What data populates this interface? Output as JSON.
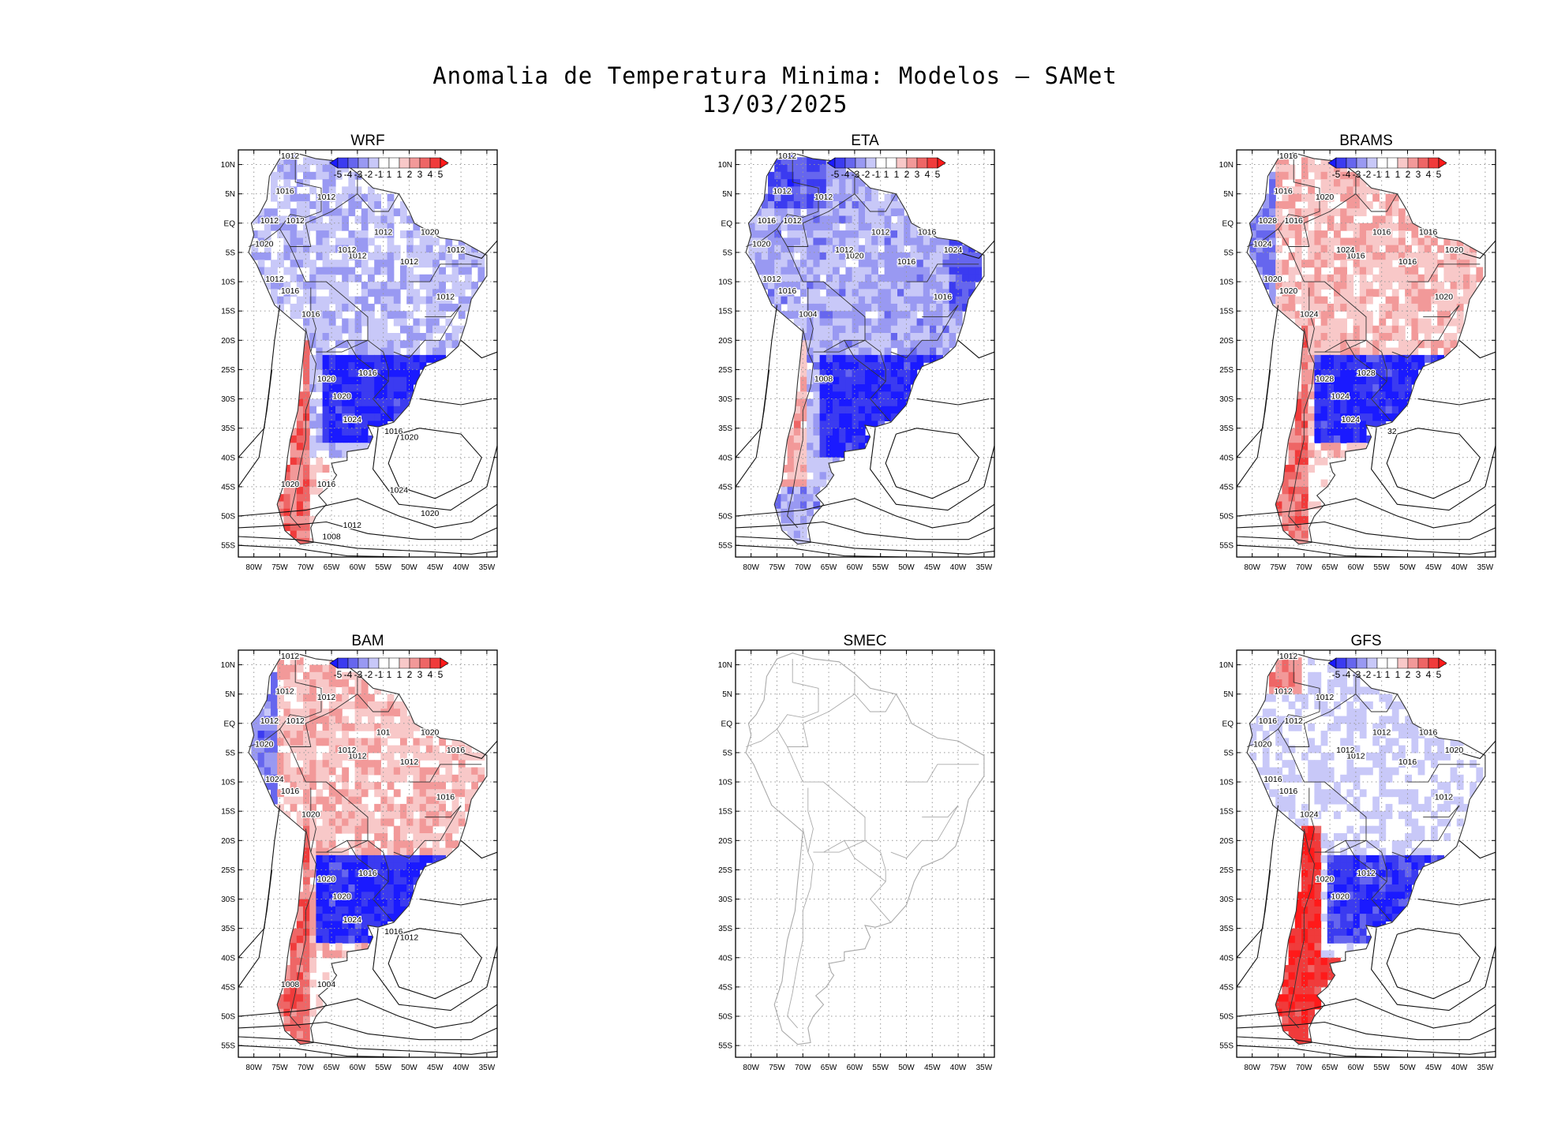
{
  "title": {
    "line1": "Anomalia de Temperatura Minima: Modelos — SAMet",
    "line2": "13/03/2025"
  },
  "lat_labels": [
    "10N",
    "5N",
    "EQ",
    "5S",
    "10S",
    "15S",
    "20S",
    "25S",
    "30S",
    "35S",
    "40S",
    "45S",
    "50S",
    "55S"
  ],
  "lon_labels": [
    "80W",
    "75W",
    "70W",
    "65W",
    "60W",
    "55W",
    "50W",
    "45W",
    "40W",
    "35W"
  ],
  "colorbar": {
    "labels": [
      "-5",
      "-4",
      "-3",
      "-2",
      "-1",
      "1",
      "1",
      "2",
      "3",
      "4",
      "5"
    ],
    "colors": [
      "#1a1aff",
      "#3b3bf0",
      "#6666ee",
      "#9999f2",
      "#c8c8f8",
      "#ffffff",
      "#ffffff",
      "#f8c8c8",
      "#f29999",
      "#ee6666",
      "#f03b3b",
      "#ff1a1a"
    ]
  },
  "panels": [
    {
      "name": "WRF",
      "pattern": "cold-south",
      "isobar_labels": [
        "1012",
        "1016",
        "1012",
        "1012",
        "1012",
        "1020",
        "1012",
        "1012",
        "1012",
        "1012",
        "1012",
        "1012",
        "1020",
        "1012",
        "1016",
        "1016",
        "1020",
        "1016",
        "1020",
        "1024",
        "1016",
        "1020",
        "1020",
        "1016",
        "1024",
        "1020",
        "1012",
        "1008"
      ]
    },
    {
      "name": "ETA",
      "pattern": "cold-all",
      "isobar_labels": [
        "1012",
        "1012",
        "1012",
        "1012",
        "1012",
        "1016",
        "1020",
        "1012",
        "1016",
        "1016",
        "1024",
        "1016",
        "1020",
        "1012",
        "1016",
        "1004",
        "1008"
      ]
    },
    {
      "name": "BRAMS",
      "pattern": "warm-north",
      "isobar_labels": [
        "1016",
        "1016",
        "1016",
        "1020",
        "1016",
        "1016",
        "1016",
        "1024",
        "1016",
        "1020",
        "1020",
        "1028",
        "1024",
        "1020",
        "1020",
        "1024",
        "1028",
        "1028",
        "1024",
        "1024",
        "32"
      ]
    },
    {
      "name": "BAM",
      "pattern": "warm-north",
      "isobar_labels": [
        "1012",
        "1012",
        "1012",
        "1012",
        "101",
        "1020",
        "1012",
        "1012",
        "1012",
        "1016",
        "1016",
        "1012",
        "1020",
        "1024",
        "1016",
        "1020",
        "1020",
        "1016",
        "1020",
        "1024",
        "1016",
        "1012",
        "1008",
        "1004"
      ]
    },
    {
      "name": "SMEC",
      "pattern": "empty",
      "isobar_labels": []
    },
    {
      "name": "GFS",
      "pattern": "warm-andes",
      "isobar_labels": [
        "1012",
        "1012",
        "1012",
        "1012",
        "1012",
        "1016",
        "1012",
        "1012",
        "1016",
        "1012",
        "1020",
        "1016",
        "1020",
        "1016",
        "1016",
        "1024",
        "1020",
        "1012",
        "1020"
      ]
    }
  ]
}
